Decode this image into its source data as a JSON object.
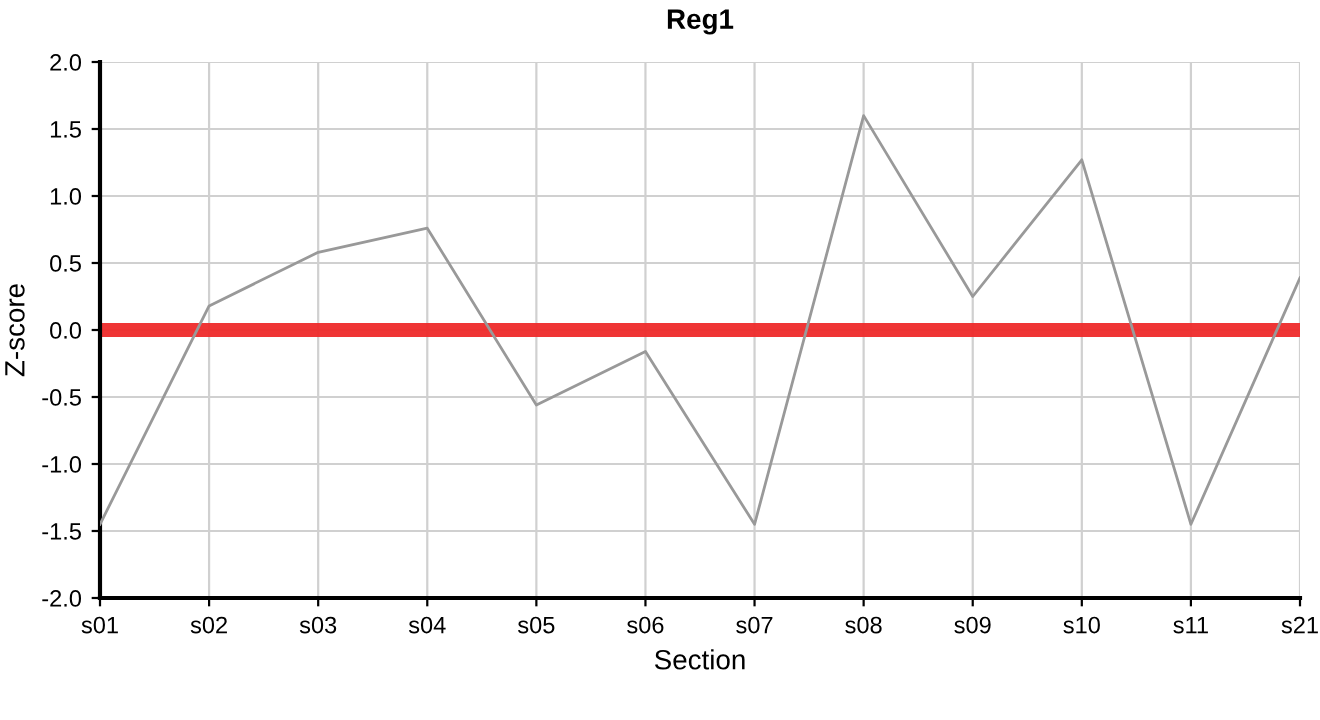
{
  "chart_data": {
    "type": "line",
    "title": "Reg1",
    "xlabel": "Section",
    "ylabel": "Z-score",
    "categories": [
      "s01",
      "s02",
      "s03",
      "s04",
      "s05",
      "s06",
      "s07",
      "s08",
      "s09",
      "s10",
      "s11",
      "s21"
    ],
    "series": [
      {
        "color": "#999999",
        "values": [
          -1.45,
          0.18,
          0.58,
          0.76,
          -0.56,
          -0.16,
          -1.45,
          1.6,
          0.25,
          1.27,
          -1.45,
          0.39
        ]
      }
    ],
    "ylim": [
      -2.0,
      2.0
    ],
    "yticks": [
      {
        "value": -2.0,
        "label": "-2.0"
      },
      {
        "value": -1.5,
        "label": "-1.5"
      },
      {
        "value": -1.0,
        "label": "-1.0"
      },
      {
        "value": -0.5,
        "label": "-0.5"
      },
      {
        "value": 0.0,
        "label": "0.0"
      },
      {
        "value": 0.5,
        "label": "0.5"
      },
      {
        "value": 1.0,
        "label": "1.0"
      },
      {
        "value": 1.5,
        "label": "1.5"
      },
      {
        "value": 2.0,
        "label": "2.0"
      }
    ],
    "ref_lines": [
      {
        "axis": "y",
        "value": 0,
        "color": "#ee2a2a"
      }
    ],
    "grid": true,
    "marker": "none",
    "line_style": "solid",
    "legend": false
  }
}
